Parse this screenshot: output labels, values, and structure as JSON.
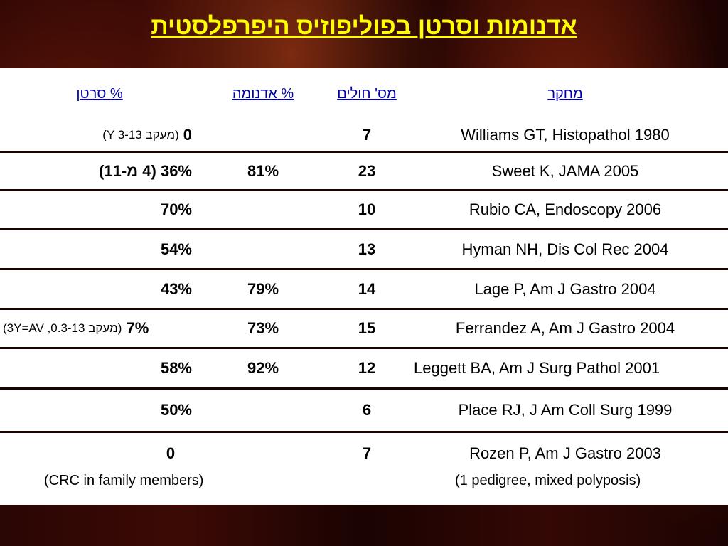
{
  "title": "אדנומות וסרטן בפוליפוזיס היפרפלסטית",
  "headers": {
    "study": "מחקר",
    "patients": "מס' חולים",
    "adenoma": "% אדנומה",
    "cancer": "% סרטן"
  },
  "rows": [
    {
      "study": "Williams GT, Histopathol 1980",
      "patients": "7",
      "adenoma": "",
      "cancer": "0",
      "cancer_note": "(מעקב Y 3-13)"
    },
    {
      "study": "Sweet K, JAMA 2005",
      "patients": "23",
      "adenoma": "81%",
      "cancer": "36% (4 מ-11)",
      "cancer_note": ""
    },
    {
      "study": "Rubio CA, Endoscopy 2006",
      "patients": "10",
      "adenoma": "",
      "cancer": "70%",
      "cancer_note": ""
    },
    {
      "study": "Hyman NH, Dis Col Rec 2004",
      "patients": "13",
      "adenoma": "",
      "cancer": "54%",
      "cancer_note": ""
    },
    {
      "study": "Lage P, Am J Gastro 2004",
      "patients": "14",
      "adenoma": "79%",
      "cancer": "43%",
      "cancer_note": ""
    },
    {
      "study": "Ferrandez A, Am J Gastro 2004",
      "patients": "15",
      "adenoma": "73%",
      "cancer": "7%",
      "cancer_note": "(מעקב 0.3-13, 3Y=AV)"
    },
    {
      "study": "Leggett BA, Am J Surg Pathol 2001",
      "patients": "12",
      "adenoma": "92%",
      "cancer": "58%",
      "cancer_note": ""
    },
    {
      "study": "Place RJ, J Am Coll Surg 1999",
      "patients": "6",
      "adenoma": "",
      "cancer": "50%",
      "cancer_note": ""
    },
    {
      "study": "Rozen P, Am J Gastro 2003",
      "patients": "7",
      "adenoma": "",
      "cancer": "0",
      "cancer_note": ""
    }
  ],
  "last_row_sub": {
    "study": "(1 pedigree, mixed polyposis)",
    "cancer": "(CRC in family members)"
  }
}
